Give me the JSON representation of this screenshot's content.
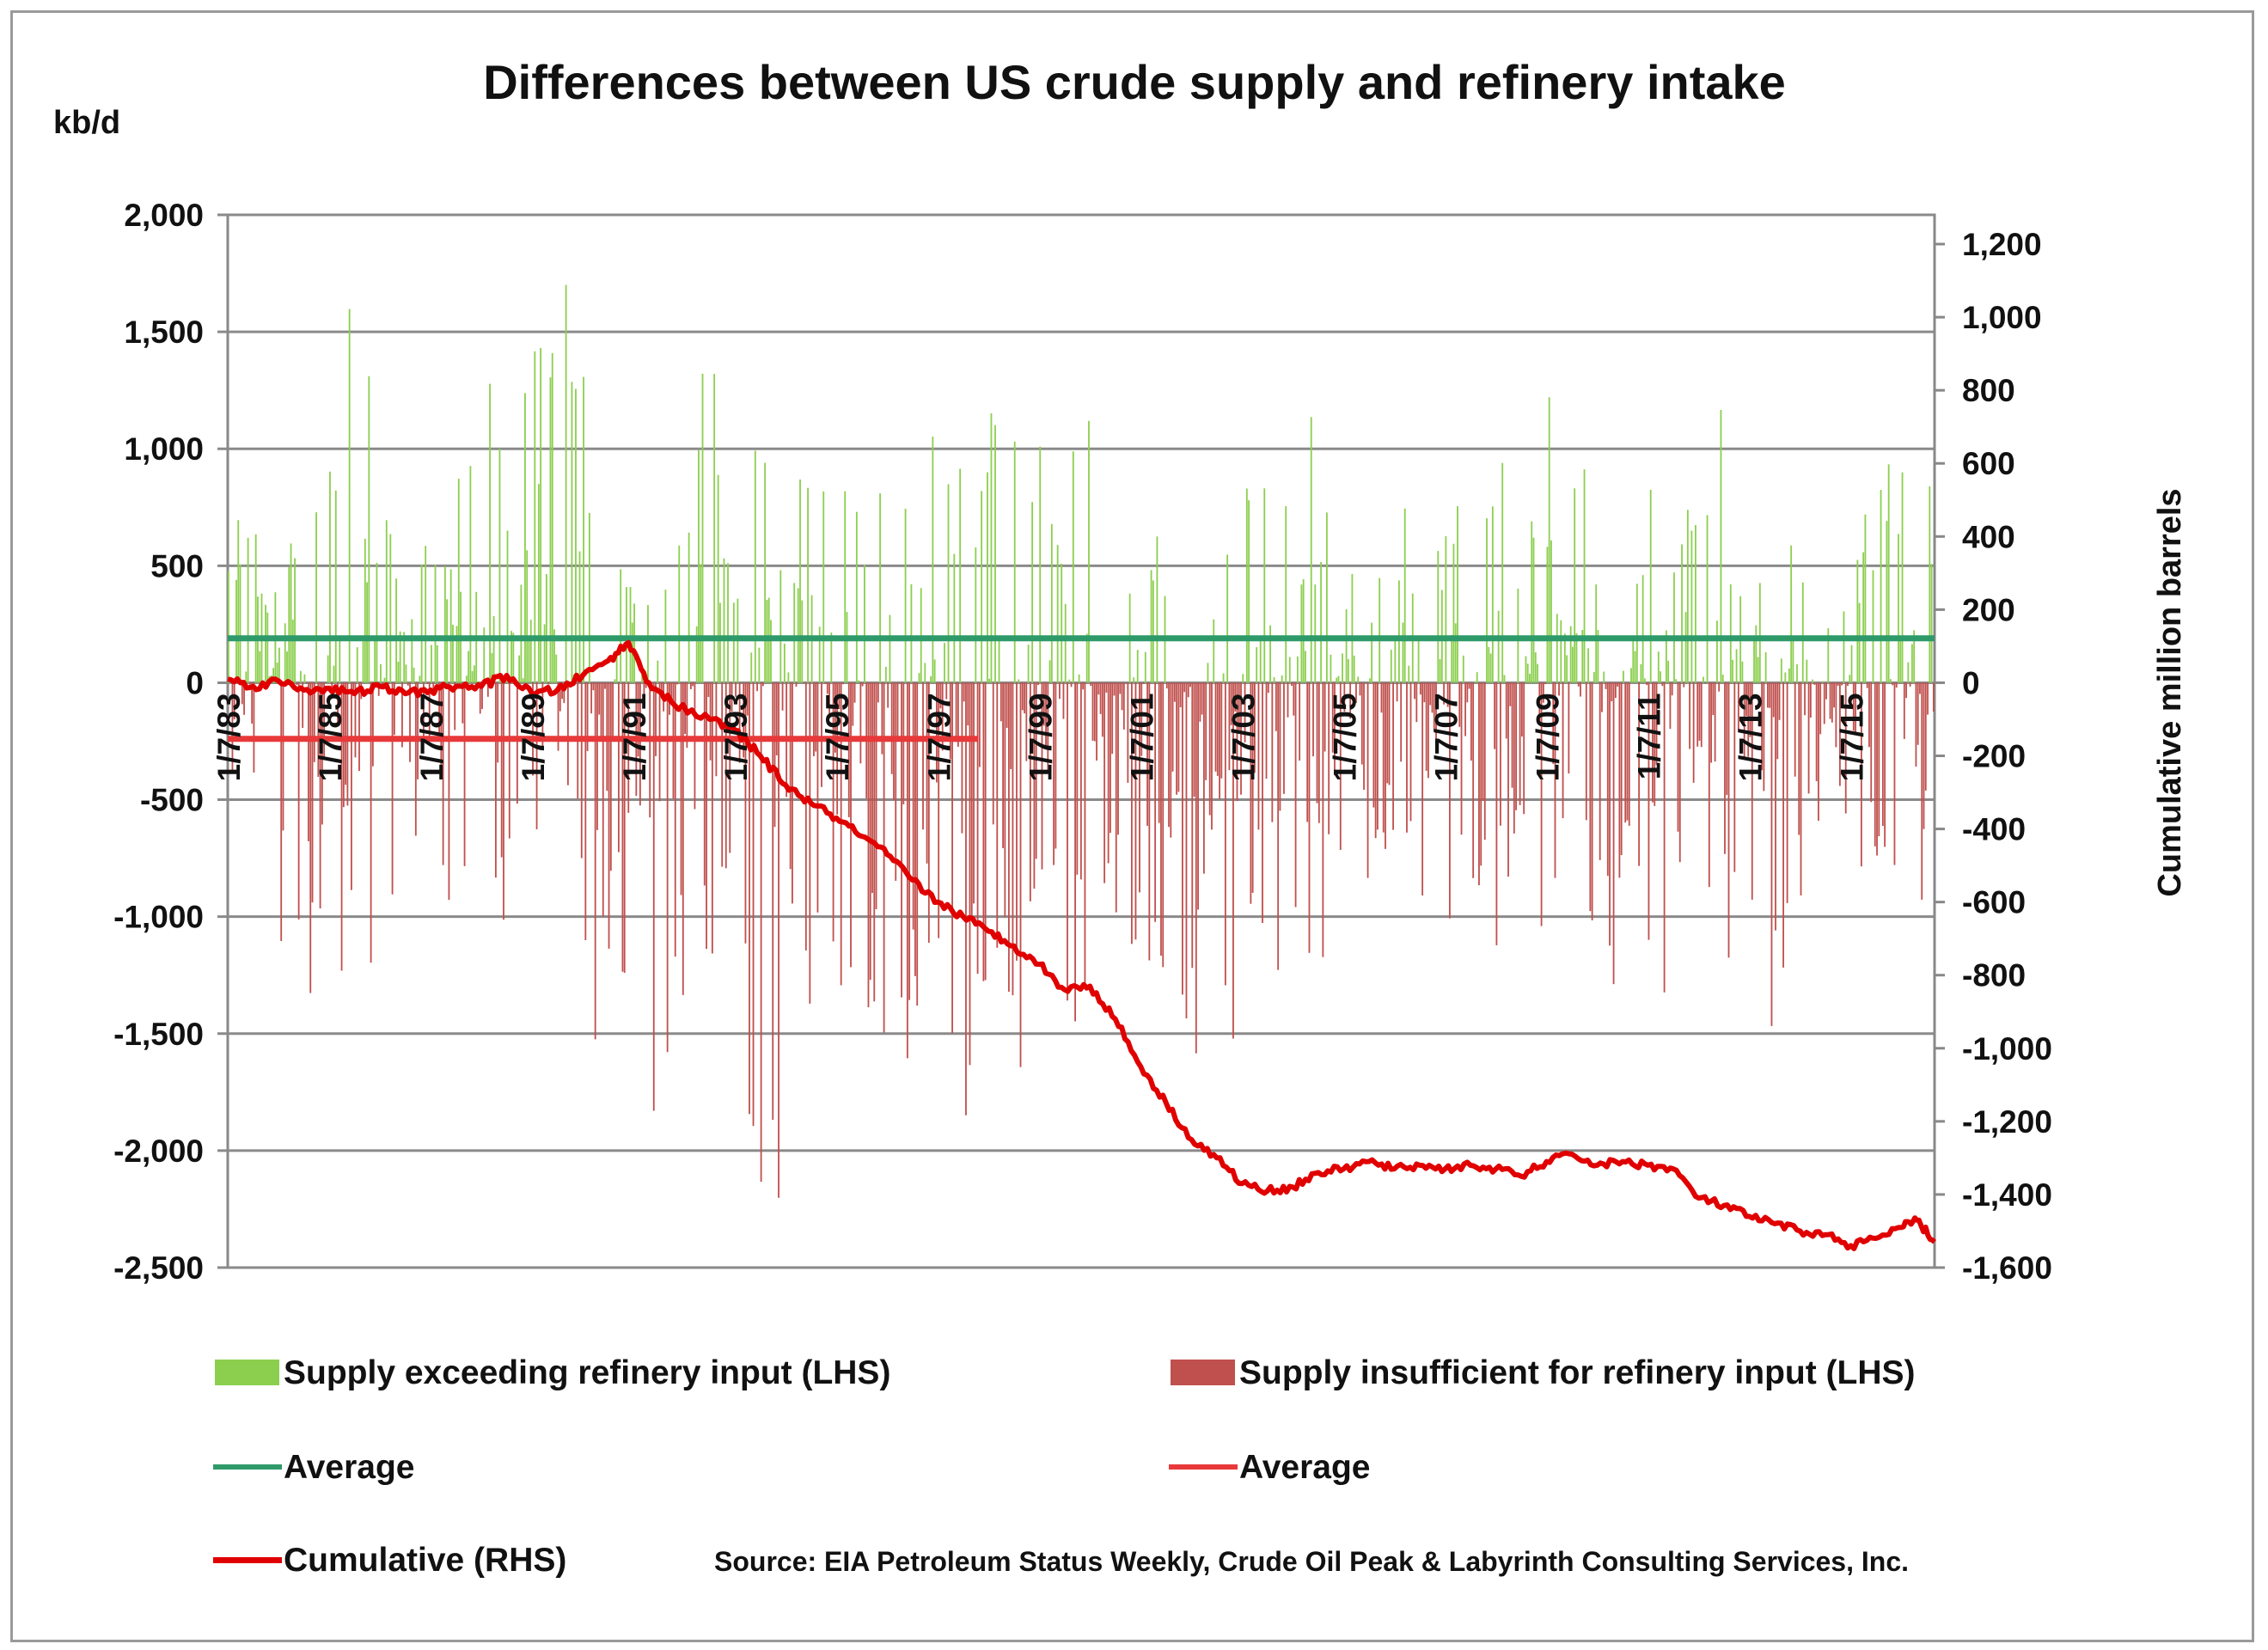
{
  "chart_data": {
    "type": "bar",
    "title": "Differences between US crude supply and refinery intake",
    "ylabel_left": "kb/d",
    "ylabel_right": "Cumulative million barrels",
    "ylim_left": [
      -2500,
      2000
    ],
    "ylim_right": [
      -1600,
      1200
    ],
    "left_ticks": [
      "2,000",
      "1,500",
      "1,000",
      "500",
      "0",
      "-500",
      "-1,000",
      "-1,500",
      "-2,000",
      "-2,500"
    ],
    "left_tick_values": [
      2000,
      1500,
      1000,
      500,
      0,
      -500,
      -1000,
      -1500,
      -2000,
      -2500
    ],
    "right_ticks": [
      "1,200",
      "1,000",
      "800",
      "600",
      "400",
      "200",
      "0",
      "-200",
      "-400",
      "-600",
      "-800",
      "-1,000",
      "-1,200",
      "-1,400",
      "-1,600"
    ],
    "right_tick_values": [
      1200,
      1000,
      800,
      600,
      400,
      200,
      0,
      -200,
      -400,
      -600,
      -800,
      -1000,
      -1200,
      -1400,
      -1600
    ],
    "x_ticks": [
      "1/7/83",
      "1/7/85",
      "1/7/87",
      "1/7/89",
      "1/7/91",
      "1/7/93",
      "1/7/95",
      "1/7/97",
      "1/7/99",
      "1/7/01",
      "1/7/03",
      "1/7/05",
      "1/7/07",
      "1/7/09",
      "1/7/11",
      "1/7/13",
      "1/7/15"
    ],
    "x_tick_years": [
      1983,
      1985,
      1987,
      1989,
      1991,
      1993,
      1995,
      1997,
      1999,
      2001,
      2003,
      2005,
      2007,
      2009,
      2011,
      2013,
      2015
    ],
    "x_range_years": [
      1983.0,
      2016.65
    ],
    "grid": true,
    "legend_placement": "bottom",
    "weekly_envelope": {
      "years": [
        1983,
        1984,
        1985,
        1986,
        1987,
        1988,
        1989,
        1990,
        1991,
        1992,
        1993,
        1994,
        1995,
        1996,
        1997,
        1998,
        1999,
        2000,
        2001,
        2002,
        2003,
        2004,
        2005,
        2006,
        2007,
        2008,
        2009,
        2010,
        2011,
        2012,
        2013,
        2014,
        2015,
        2016
      ],
      "max_positive_kbd": [
        750,
        1180,
        1620,
        1070,
        1110,
        1360,
        1750,
        1120,
        600,
        1400,
        1370,
        1050,
        1020,
        1080,
        1300,
        1410,
        1240,
        500,
        1180,
        700,
        1730,
        1680,
        970,
        820,
        1250,
        1040,
        1230,
        600,
        1140,
        1180,
        900,
        700,
        1100,
        1450
      ],
      "min_negative_kbd": [
        -1070,
        -1340,
        -1260,
        -1140,
        -1140,
        -1240,
        -960,
        -1560,
        -1950,
        -1890,
        -2250,
        -1650,
        -1800,
        -1780,
        -1930,
        -1700,
        -1600,
        -1400,
        -1570,
        -1600,
        -1590,
        -1240,
        -1100,
        -1010,
        -1330,
        -1230,
        -1250,
        -1700,
        -1400,
        -1180,
        -1470,
        -1000,
        -1020,
        -1150
      ],
      "share_positive": [
        0.55,
        0.55,
        0.5,
        0.5,
        0.55,
        0.55,
        0.5,
        0.6,
        0.2,
        0.35,
        0.35,
        0.3,
        0.3,
        0.3,
        0.35,
        0.35,
        0.3,
        0.2,
        0.2,
        0.25,
        0.45,
        0.4,
        0.4,
        0.4,
        0.45,
        0.45,
        0.5,
        0.45,
        0.4,
        0.4,
        0.4,
        0.35,
        0.45,
        0.4
      ]
    },
    "series": [
      {
        "name": "Supply exceeding refinery input (LHS)",
        "kind": "bar",
        "color": "#8ccf4f"
      },
      {
        "name": "Supply insufficient for refinery input (LHS)",
        "kind": "bar",
        "color": "#c0504d"
      },
      {
        "name": "Average",
        "kind": "hline",
        "color": "#2e9a6a",
        "value": 190,
        "x_range_years": [
          1983.0,
          2016.65
        ]
      },
      {
        "name": "Average",
        "kind": "hline",
        "color": "#e8393a",
        "value": -240,
        "x_range_years": [
          1983.0,
          1997.8
        ]
      },
      {
        "name": "Cumulative (RHS)",
        "kind": "line",
        "axis": "right",
        "color": "#e00000",
        "x": [
          1983.0,
          1983.5,
          1984.0,
          1984.5,
          1985.0,
          1985.5,
          1986.0,
          1986.5,
          1987.0,
          1987.5,
          1988.0,
          1988.5,
          1989.0,
          1989.5,
          1990.0,
          1990.5,
          1990.9,
          1991.3,
          1991.8,
          1992.5,
          1993.0,
          1993.5,
          1994.0,
          1994.5,
          1995.0,
          1995.5,
          1996.0,
          1996.5,
          1997.0,
          1997.5,
          1998.0,
          1998.5,
          1999.0,
          1999.5,
          2000.0,
          2000.5,
          2001.0,
          2001.5,
          2002.0,
          2002.5,
          2003.0,
          2003.5,
          2004.0,
          2004.5,
          2005.0,
          2005.5,
          2006.0,
          2006.5,
          2007.0,
          2007.5,
          2008.0,
          2008.5,
          2009.0,
          2009.5,
          2010.0,
          2010.5,
          2011.0,
          2011.5,
          2012.0,
          2012.5,
          2013.0,
          2013.5,
          2014.0,
          2014.5,
          2015.0,
          2015.5,
          2016.0,
          2016.3,
          2016.65
        ],
        "values": [
          10,
          -10,
          5,
          -20,
          -15,
          -30,
          -10,
          -30,
          -20,
          -10,
          -10,
          20,
          -30,
          -20,
          20,
          60,
          110,
          0,
          -60,
          -100,
          -130,
          -200,
          -280,
          -330,
          -370,
          -420,
          -470,
          -540,
          -600,
          -640,
          -680,
          -720,
          -770,
          -840,
          -830,
          -920,
          -1050,
          -1150,
          -1250,
          -1300,
          -1370,
          -1390,
          -1380,
          -1340,
          -1330,
          -1310,
          -1330,
          -1320,
          -1330,
          -1320,
          -1330,
          -1350,
          -1310,
          -1290,
          -1320,
          -1310,
          -1320,
          -1330,
          -1410,
          -1430,
          -1460,
          -1480,
          -1500,
          -1510,
          -1540,
          -1520,
          -1490,
          -1470,
          -1530
        ]
      }
    ],
    "source": "Source: EIA Petroleum Status Weekly, Crude Oil Peak & Labyrinth Consulting Services, Inc."
  },
  "legend": {
    "green_bars": "Supply exceeding refinery input (LHS)",
    "red_bars": "Supply insufficient for refinery input (LHS)",
    "green_avg": "Average",
    "red_avg": "Average",
    "cumulative": "Cumulative (RHS)"
  }
}
